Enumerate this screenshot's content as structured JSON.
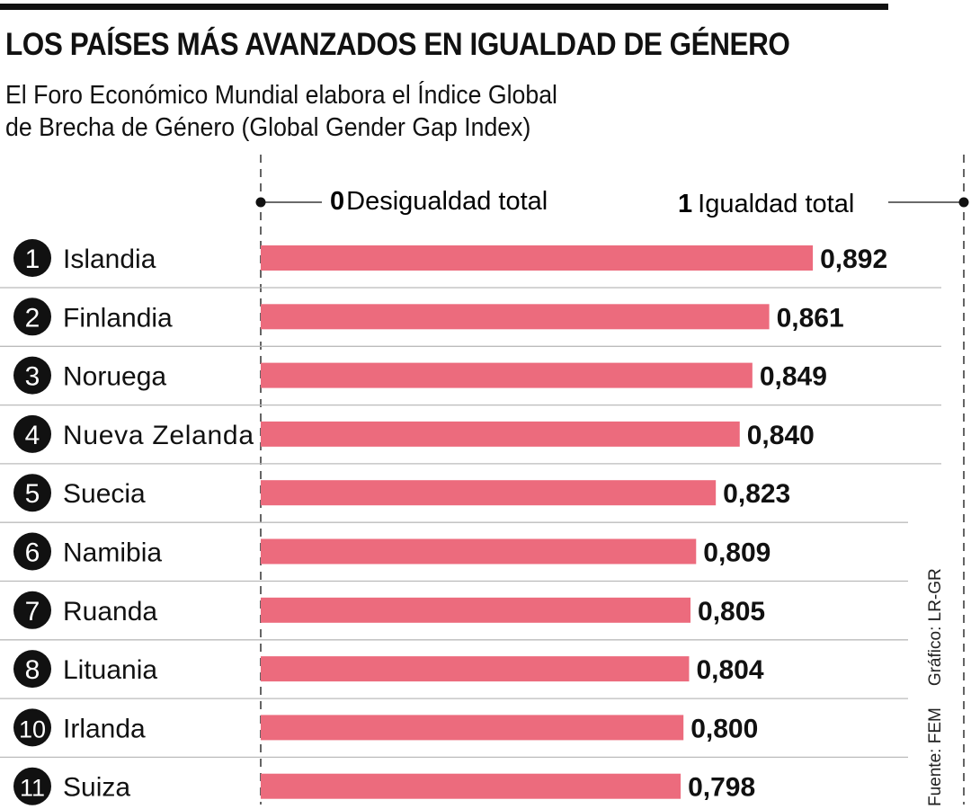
{
  "title": "LOS PAÍSES MÁS AVANZADOS EN IGUALDAD DE GÉNERO",
  "subtitle_line1": "El Foro Económico Mundial elabora el Índice Global",
  "subtitle_line2": "de Brecha de Género (Global Gender Gap Index)",
  "source": "Fuente: FEM",
  "credit": "Gráfico: LR-GR",
  "colors": {
    "bar": "#EC6B7D",
    "text": "#111111",
    "divider": "#BBBBBB"
  },
  "chart_data": {
    "type": "bar",
    "orientation": "horizontal",
    "scale": {
      "min_label_value": "0",
      "min_label_text": "Desigualdad total",
      "max_label_value": "1",
      "max_label_text": "Igualdad total"
    },
    "categories": [
      "Islandia",
      "Finlandia",
      "Noruega",
      "Nueva Zelanda",
      "Suecia",
      "Namibia",
      "Ruanda",
      "Lituania",
      "Irlanda",
      "Suiza"
    ],
    "ranks": [
      "1",
      "2",
      "3",
      "4",
      "5",
      "6",
      "7",
      "8",
      "10",
      "11"
    ],
    "values": [
      0.892,
      0.861,
      0.849,
      0.84,
      0.823,
      0.809,
      0.805,
      0.804,
      0.8,
      0.798
    ],
    "value_labels": [
      "0,892",
      "0,861",
      "0,849",
      "0,840",
      "0,823",
      "0,809",
      "0,805",
      "0,804",
      "0,800",
      "0,798"
    ]
  }
}
